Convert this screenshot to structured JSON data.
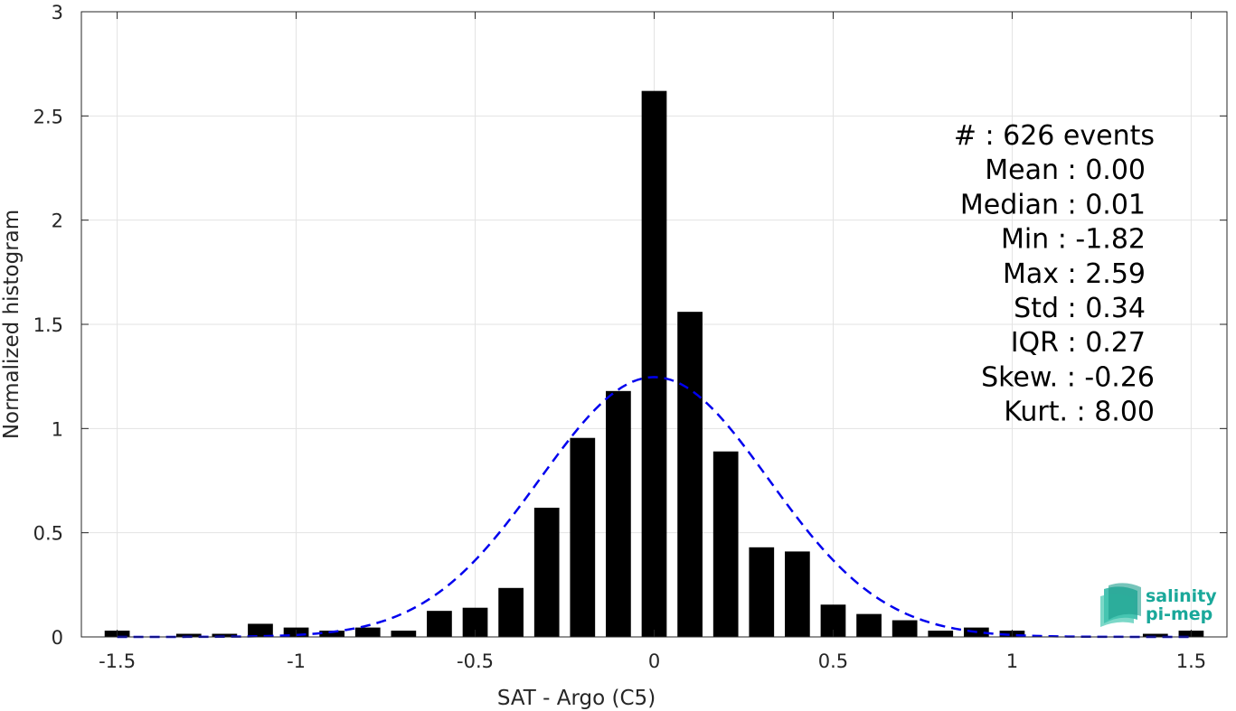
{
  "chart_data": {
    "type": "bar",
    "xlabel": "SAT - Argo (C5)",
    "ylabel": "Normalized histogram",
    "xlim": [
      -1.6,
      1.6
    ],
    "ylim": [
      0,
      3
    ],
    "xticks": [
      -1.5,
      -1,
      -0.5,
      0,
      0.5,
      1,
      1.5
    ],
    "xtick_labels": [
      "-1.5",
      "-1",
      "-0.5",
      "0",
      "0.5",
      "1",
      "1.5"
    ],
    "yticks": [
      0,
      0.5,
      1,
      1.5,
      2,
      2.5,
      3
    ],
    "ytick_labels": [
      "0",
      "0.5",
      "1",
      "1.5",
      "2",
      "2.5",
      "3"
    ],
    "grid": true,
    "bar_color": "#000000",
    "fit_color": "#0000ee",
    "bar_width": 0.07,
    "bins": [
      {
        "x": -1.5,
        "y": 0.03
      },
      {
        "x": -1.3,
        "y": 0.015
      },
      {
        "x": -1.2,
        "y": 0.015
      },
      {
        "x": -1.1,
        "y": 0.063
      },
      {
        "x": -1.0,
        "y": 0.045
      },
      {
        "x": -0.9,
        "y": 0.03
      },
      {
        "x": -0.8,
        "y": 0.045
      },
      {
        "x": -0.7,
        "y": 0.03
      },
      {
        "x": -0.6,
        "y": 0.125
      },
      {
        "x": -0.5,
        "y": 0.14
      },
      {
        "x": -0.4,
        "y": 0.235
      },
      {
        "x": -0.3,
        "y": 0.62
      },
      {
        "x": -0.2,
        "y": 0.955
      },
      {
        "x": -0.1,
        "y": 1.18
      },
      {
        "x": 0.0,
        "y": 2.62
      },
      {
        "x": 0.1,
        "y": 1.56
      },
      {
        "x": 0.2,
        "y": 0.89
      },
      {
        "x": 0.3,
        "y": 0.43
      },
      {
        "x": 0.4,
        "y": 0.41
      },
      {
        "x": 0.5,
        "y": 0.155
      },
      {
        "x": 0.6,
        "y": 0.11
      },
      {
        "x": 0.7,
        "y": 0.08
      },
      {
        "x": 0.8,
        "y": 0.03
      },
      {
        "x": 0.9,
        "y": 0.045
      },
      {
        "x": 1.0,
        "y": 0.03
      },
      {
        "x": 1.4,
        "y": 0.015
      },
      {
        "x": 1.5,
        "y": 0.03
      }
    ],
    "fit": {
      "type": "gaussian",
      "mean": 0.0,
      "std": 0.32,
      "x_range": [
        -1.5,
        1.5
      ]
    },
    "stats": [
      "#  : 626 events",
      "Mean : 0.00",
      "Median : 0.01",
      "Min : -1.82",
      "Max : 2.59",
      "Std : 0.34",
      "IQR : 0.27",
      "Skew. : -0.26",
      "Kurt. : 8.00"
    ]
  },
  "logo": {
    "line1": "salinity",
    "line2": "pi-mep",
    "color": "#1aa89a"
  }
}
